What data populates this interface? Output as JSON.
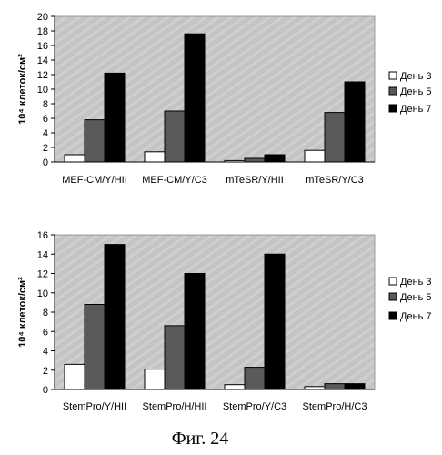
{
  "figure_caption": "Фиг. 24",
  "colors": {
    "plot_bg": "#c6c6c6",
    "day3": "#ffffff",
    "day5": "#5a5a5a",
    "day7": "#000000"
  },
  "chart_data": [
    {
      "type": "bar",
      "ylabel": "10⁴ клеток/см²",
      "ylim": [
        0,
        20
      ],
      "yticks": [
        0,
        2,
        4,
        6,
        8,
        10,
        12,
        14,
        16,
        18,
        20
      ],
      "categories": [
        "MEF-CM/Y/HII",
        "MEF-CM/Y/C3",
        "mTeSR/Y/HII",
        "mTeSR/Y/C3"
      ],
      "series": [
        {
          "name": "День 3",
          "values": [
            1.0,
            1.4,
            0.2,
            1.6
          ]
        },
        {
          "name": "День 5",
          "values": [
            5.8,
            7.0,
            0.5,
            6.8
          ]
        },
        {
          "name": "День 7",
          "values": [
            12.2,
            17.6,
            1.0,
            11.0
          ]
        }
      ],
      "legend": "right"
    },
    {
      "type": "bar",
      "ylabel": "10⁴ клеток/см²",
      "ylim": [
        0,
        16
      ],
      "yticks": [
        0,
        2,
        4,
        6,
        8,
        10,
        12,
        14,
        16
      ],
      "categories": [
        "StemPro/Y/HII",
        "StemPro/H/HII",
        "StemPro/Y/C3",
        "StemPro/H/C3"
      ],
      "series": [
        {
          "name": "День 3",
          "values": [
            2.6,
            2.1,
            0.5,
            0.3
          ]
        },
        {
          "name": "День 5",
          "values": [
            8.8,
            6.6,
            2.3,
            0.6
          ]
        },
        {
          "name": "День 7",
          "values": [
            15.0,
            12.0,
            14.0,
            0.6
          ]
        }
      ],
      "legend": "right"
    }
  ]
}
